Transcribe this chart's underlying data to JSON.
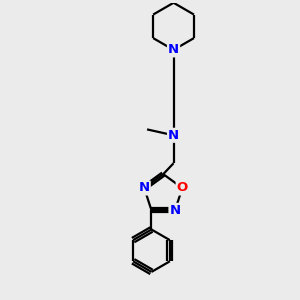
{
  "bg_color": "#ebebeb",
  "bond_color": "#000000",
  "N_color": "#0000ff",
  "O_color": "#ff0000",
  "line_width": 1.6,
  "font_size_atoms": 9.5,
  "fig_width": 3.0,
  "fig_height": 3.0,
  "dpi": 100,
  "xlim": [
    0,
    10
  ],
  "ylim": [
    0,
    10
  ]
}
